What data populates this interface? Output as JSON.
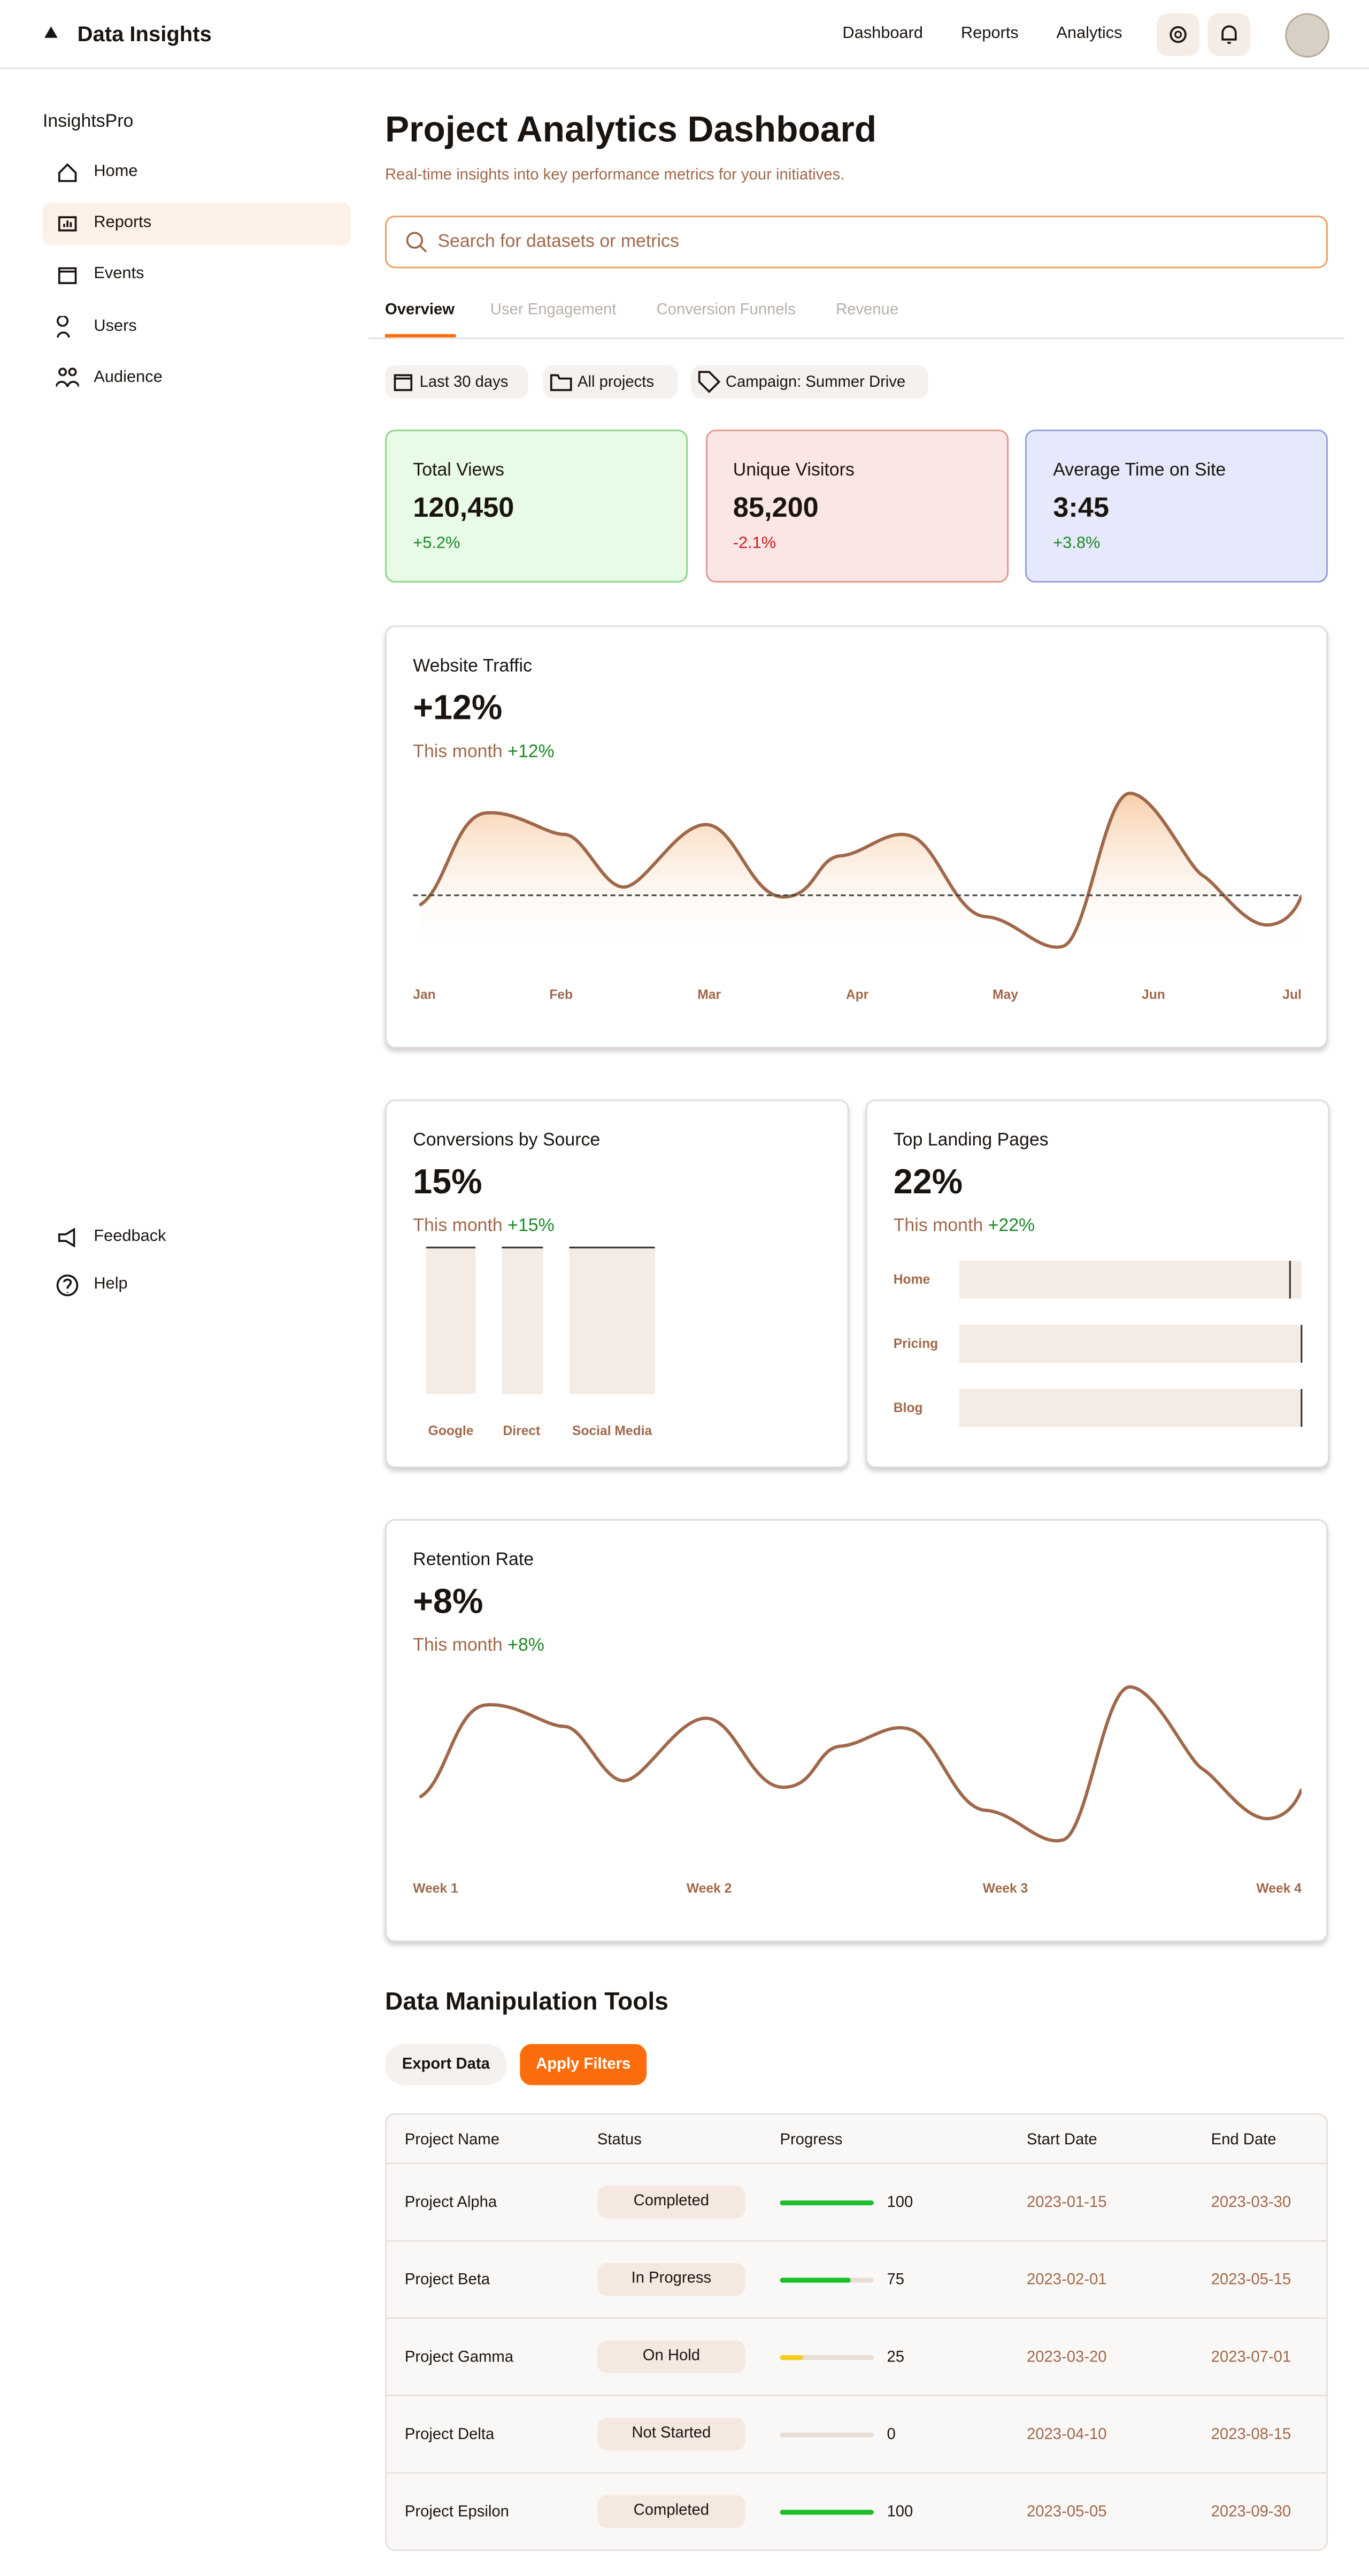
{
  "header": {
    "brand": "Data Insights",
    "nav": [
      "Dashboard",
      "Reports",
      "Analytics"
    ]
  },
  "sidebar": {
    "title": "InsightsPro",
    "items": [
      "Home",
      "Reports",
      "Events",
      "Users",
      "Audience"
    ],
    "footer_items": [
      "Feedback",
      "Help"
    ]
  },
  "main": {
    "title": "Project Analytics Dashboard",
    "subtitle": "Real-time insights into key performance metrics for your initiatives.",
    "search_placeholder": "Search for datasets or metrics",
    "tabs": [
      "Overview",
      "User Engagement",
      "Conversion Funnels",
      "Revenue"
    ],
    "filters": [
      "Last 30 days",
      "All projects",
      "Campaign: Summer Drive"
    ],
    "kpis": [
      {
        "label": "Total Views",
        "value": "120,450",
        "change": "+5.2%"
      },
      {
        "label": "Unique Visitors",
        "value": "85,200",
        "change": "-2.1%"
      },
      {
        "label": "Average Time on Site",
        "value": "3:45",
        "change": "+3.8%"
      }
    ],
    "traffic": {
      "title": "Website Traffic",
      "value": "+12%",
      "caption": "This month",
      "change": "+12%",
      "x_labels": [
        "Jan",
        "Feb",
        "Mar",
        "Apr",
        "May",
        "Jun",
        "Jul"
      ]
    },
    "conversions": {
      "title": "Conversions by Source",
      "value": "15%",
      "caption": "This month",
      "change": "+15%",
      "categories": [
        "Google",
        "Direct",
        "Social Media"
      ]
    },
    "landing": {
      "title": "Top Landing Pages",
      "value": "22%",
      "caption": "This month",
      "change": "+22%",
      "categories": [
        "Home",
        "Pricing",
        "Blog"
      ]
    },
    "retention": {
      "title": "Retention Rate",
      "value": "+8%",
      "caption": "This month",
      "change": "+8%",
      "x_labels": [
        "Week 1",
        "Week 2",
        "Week 3",
        "Week 4"
      ]
    }
  },
  "tools": {
    "title": "Data Manipulation Tools",
    "buttons": [
      "Export Data",
      "Apply Filters"
    ],
    "table": {
      "columns": [
        "Project Name",
        "Status",
        "Progress",
        "Start Date",
        "End Date"
      ],
      "rows": [
        {
          "name": "Project Alpha",
          "status": "Completed",
          "progress": 100,
          "progress_color": "#1cbf2a",
          "start": "2023-01-15",
          "end": "2023-03-30"
        },
        {
          "name": "Project Beta",
          "status": "In Progress",
          "progress": 75,
          "progress_color": "#1cbf2a",
          "start": "2023-02-01",
          "end": "2023-05-15"
        },
        {
          "name": "Project Gamma",
          "status": "On Hold",
          "progress": 25,
          "progress_color": "#f5cc1a",
          "start": "2023-03-20",
          "end": "2023-07-01"
        },
        {
          "name": "Project Delta",
          "status": "Not Started",
          "progress": 0,
          "progress_color": "#e0d5cd",
          "start": "2023-04-10",
          "end": "2023-08-15"
        },
        {
          "name": "Project Epsilon",
          "status": "Completed",
          "progress": 100,
          "progress_color": "#1cbf2a",
          "start": "2023-05-05",
          "end": "2023-09-30"
        }
      ]
    }
  }
}
